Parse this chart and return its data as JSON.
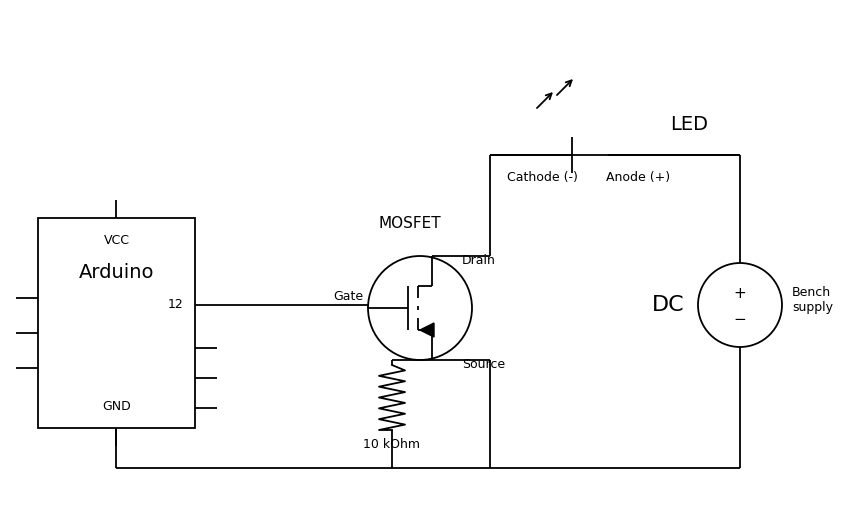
{
  "bg_color": "#ffffff",
  "line_color": "#000000",
  "lw": 1.3,
  "arduino_label": "Arduino",
  "vcc_label": "VCC",
  "gnd_label": "GND",
  "pin12_label": "12",
  "mosfet_label": "MOSFET",
  "led_label": "LED",
  "dc_label": "DC",
  "bench_label": "Bench\nsupply",
  "resistor_label": "10 kOhm",
  "cathode_label": "Cathode (-)",
  "anode_label": "Anode (+)",
  "drain_label": "Drain",
  "source_label": "Source",
  "gate_label": "Gate"
}
